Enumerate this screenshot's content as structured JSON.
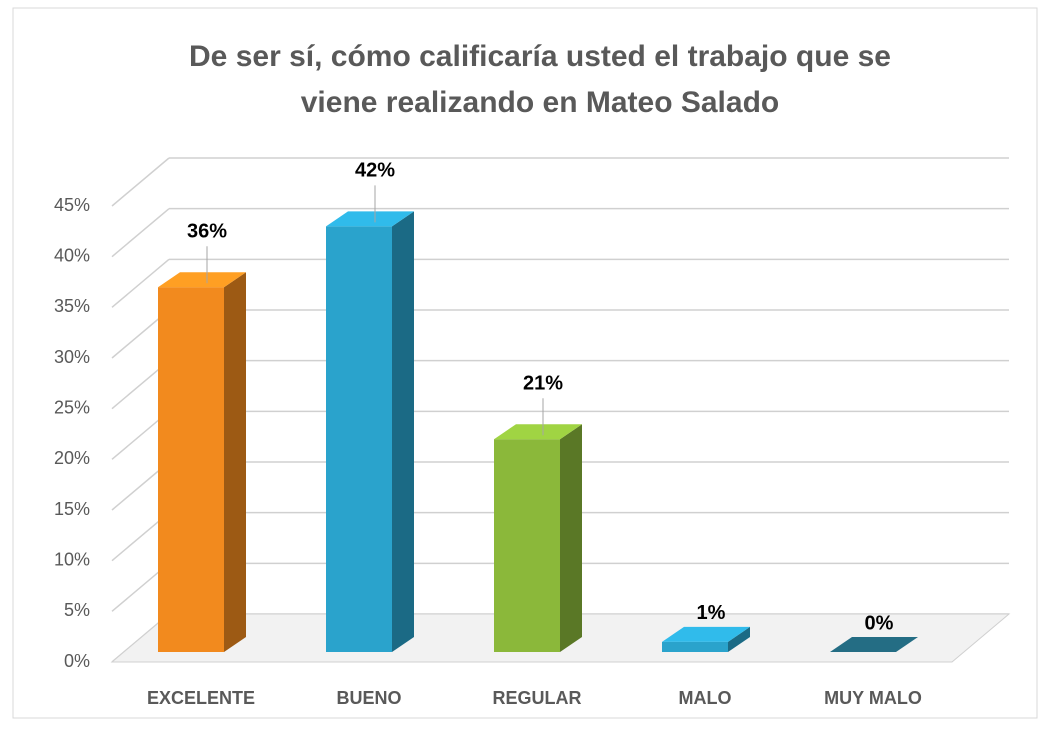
{
  "chart_data": {
    "type": "bar3d",
    "title": [
      "De ser sí, cómo calificaría usted el trabajo que se",
      "viene realizando en Mateo Salado"
    ],
    "categories": [
      "EXCELENTE",
      "BUENO",
      "REGULAR",
      "MALO",
      "MUY MALO"
    ],
    "values": [
      36,
      42,
      21,
      1,
      0
    ],
    "value_labels": [
      "36%",
      "42%",
      "21%",
      "1%",
      "0%"
    ],
    "colors": [
      "#f28a1e",
      "#2aa3cc",
      "#8bb83a",
      "#2aa3cc",
      "#1f5f73"
    ],
    "ylim": [
      0,
      45
    ],
    "yticks": [
      {
        "value": 0,
        "label": "0%"
      },
      {
        "value": 5,
        "label": "5%"
      },
      {
        "value": 10,
        "label": "10%"
      },
      {
        "value": 15,
        "label": "15%"
      },
      {
        "value": 20,
        "label": "20%"
      },
      {
        "value": 25,
        "label": "25%"
      },
      {
        "value": 30,
        "label": "30%"
      },
      {
        "value": 35,
        "label": "35%"
      },
      {
        "value": 40,
        "label": "40%"
      },
      {
        "value": 45,
        "label": "45%"
      }
    ],
    "grid": true
  }
}
